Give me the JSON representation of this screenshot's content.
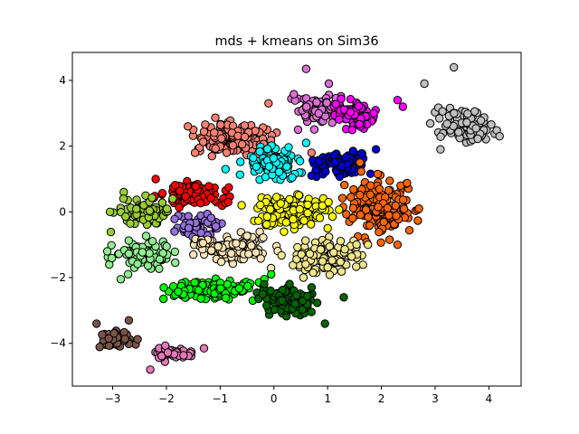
{
  "chart_data": {
    "type": "scatter",
    "title": "mds + kmeans on Sim36",
    "xlabel": "",
    "ylabel": "",
    "xlim": [
      -3.75,
      4.6
    ],
    "ylim": [
      -5.3,
      4.85
    ],
    "x_ticks": [
      -3,
      -2,
      -1,
      0,
      1,
      2,
      3,
      4
    ],
    "y_ticks": [
      -4,
      -2,
      0,
      2,
      4
    ],
    "x_tick_labels": [
      "−3",
      "−2",
      "−1",
      "0",
      "1",
      "2",
      "3",
      "4"
    ],
    "y_tick_labels": [
      "−4",
      "−2",
      "0",
      "2",
      "4"
    ],
    "grid": false,
    "legend": "none",
    "marker_edge_color": "#000000",
    "series": [
      {
        "color": "#fa8072",
        "center": [
          -0.75,
          2.2
        ],
        "spread": [
          0.55,
          0.35
        ],
        "count": 170,
        "x": [
          -1.6,
          -0.1,
          0.7
        ],
        "y": [
          2.6,
          3.3,
          1.8
        ]
      },
      {
        "color": "#da70d6",
        "center": [
          0.85,
          3.15
        ],
        "spread": [
          0.35,
          0.35
        ],
        "count": 90,
        "x": [
          0.6,
          0.45,
          1.2
        ],
        "y": [
          4.35,
          2.5,
          2.9
        ]
      },
      {
        "color": "#ff00ff",
        "center": [
          1.5,
          3.0
        ],
        "spread": [
          0.3,
          0.3
        ],
        "count": 70,
        "x": [
          2.3,
          2.4
        ],
        "y": [
          3.4,
          3.2
        ]
      },
      {
        "color": "#c0c0c0",
        "center": [
          3.55,
          2.65
        ],
        "spread": [
          0.35,
          0.35
        ],
        "count": 110,
        "x": [
          3.35,
          2.8,
          4.2,
          3.1
        ],
        "y": [
          4.4,
          3.9,
          2.3,
          1.9
        ]
      },
      {
        "color": "#00ffff",
        "center": [
          0.0,
          1.45
        ],
        "spread": [
          0.35,
          0.3
        ],
        "count": 120,
        "x": [
          -0.9,
          0.6
        ],
        "y": [
          1.3,
          2.1
        ]
      },
      {
        "color": "#0000cd",
        "center": [
          1.25,
          1.45
        ],
        "spread": [
          0.4,
          0.25
        ],
        "count": 110,
        "x": [
          1.9,
          0.7
        ],
        "y": [
          1.9,
          1.1
        ]
      },
      {
        "color": "#ff0000",
        "center": [
          -1.5,
          0.55
        ],
        "spread": [
          0.4,
          0.25
        ],
        "count": 100,
        "x": [
          -2.2,
          -0.85
        ],
        "y": [
          1.0,
          0.3
        ]
      },
      {
        "color": "#ff6600",
        "center": [
          2.0,
          0.15
        ],
        "spread": [
          0.45,
          0.55
        ],
        "count": 150,
        "x": [
          2.7,
          2.3,
          1.6
        ],
        "y": [
          0.1,
          -1.0,
          1.5
        ]
      },
      {
        "color": "#9acd32",
        "center": [
          -2.45,
          0.0
        ],
        "spread": [
          0.35,
          0.3
        ],
        "count": 80,
        "x": [
          -3.05,
          -2.8
        ],
        "y": [
          0.0,
          0.4
        ]
      },
      {
        "color": "#9370db",
        "center": [
          -1.45,
          -0.45
        ],
        "spread": [
          0.3,
          0.22
        ],
        "count": 60,
        "x": [
          -1.85
        ],
        "y": [
          -0.6
        ]
      },
      {
        "color": "#ffff00",
        "center": [
          0.35,
          0.0
        ],
        "spread": [
          0.45,
          0.35
        ],
        "count": 140,
        "x": [
          -0.6,
          1.0
        ],
        "y": [
          0.2,
          -0.5
        ]
      },
      {
        "color": "#90ee90",
        "center": [
          -2.45,
          -1.3
        ],
        "spread": [
          0.4,
          0.3
        ],
        "count": 90,
        "x": [
          -3.1,
          -2.85
        ],
        "y": [
          -1.2,
          -2.05
        ]
      },
      {
        "color": "#ffe4b5",
        "center": [
          -0.75,
          -1.1
        ],
        "spread": [
          0.5,
          0.3
        ],
        "count": 110,
        "x": [
          -1.5
        ],
        "y": [
          -1.3
        ]
      },
      {
        "color": "#f0e68c",
        "center": [
          1.05,
          -1.35
        ],
        "spread": [
          0.45,
          0.3
        ],
        "count": 110,
        "x": [
          1.75,
          0.55
        ],
        "y": [
          -1.0,
          -2.0
        ]
      },
      {
        "color": "#00ff00",
        "center": [
          -1.05,
          -2.35
        ],
        "spread": [
          0.55,
          0.22
        ],
        "count": 140,
        "x": [
          -2.05,
          -0.05
        ],
        "y": [
          -2.3,
          -1.9
        ]
      },
      {
        "color": "#006400",
        "center": [
          0.25,
          -2.75
        ],
        "spread": [
          0.38,
          0.3
        ],
        "count": 110,
        "x": [
          1.3,
          0.95
        ],
        "y": [
          -2.6,
          -3.4
        ]
      },
      {
        "color": "#795548",
        "center": [
          -2.95,
          -3.9
        ],
        "spread": [
          0.25,
          0.18
        ],
        "count": 45,
        "x": [
          -3.3,
          -2.7
        ],
        "y": [
          -3.4,
          -3.3
        ]
      },
      {
        "color": "#e37ab8",
        "center": [
          -1.85,
          -4.3
        ],
        "spread": [
          0.3,
          0.16
        ],
        "count": 45,
        "x": [
          -2.3,
          -1.3
        ],
        "y": [
          -4.8,
          -4.15
        ]
      }
    ]
  }
}
